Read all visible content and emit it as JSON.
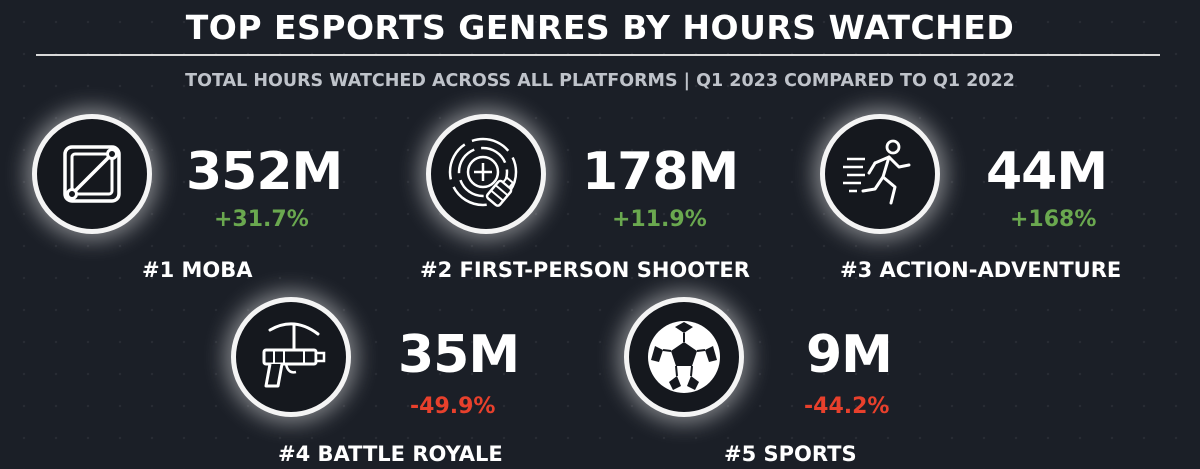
{
  "title": "TOP ESPORTS GENRES BY HOURS WATCHED",
  "subtitle": "TOTAL HOURS WATCHED ACROSS ALL PLATFORMS | Q1 2023 COMPARED TO Q1 2022",
  "colors": {
    "positive": "#6aa84f",
    "negative": "#e8402c",
    "background": "#1b1f27"
  },
  "chart_data": {
    "type": "table",
    "title": "TOP ESPORTS GENRES BY HOURS WATCHED",
    "subtitle": "TOTAL HOURS WATCHED ACROSS ALL PLATFORMS | Q1 2023 COMPARED TO Q1 2022",
    "items": [
      {
        "rank_label": "#1 MOBA",
        "hours": "352M",
        "hours_value": 352,
        "change": "+31.7%",
        "change_value": 31.7,
        "icon": "moba-map-icon"
      },
      {
        "rank_label": "#2 FIRST-PERSON SHOOTER",
        "hours": "178M",
        "hours_value": 178,
        "change": "+11.9%",
        "change_value": 11.9,
        "icon": "crosshair-grenade-icon"
      },
      {
        "rank_label": "#3 ACTION-ADVENTURE",
        "hours": "44M",
        "hours_value": 44,
        "change": "+168%",
        "change_value": 168,
        "icon": "running-person-icon"
      },
      {
        "rank_label": "#4 BATTLE ROYALE",
        "hours": "35M",
        "hours_value": 35,
        "change": "-49.9%",
        "change_value": -49.9,
        "icon": "pickaxe-gun-icon"
      },
      {
        "rank_label": "#5 SPORTS",
        "hours": "9M",
        "hours_value": 9,
        "change": "-44.2%",
        "change_value": -44.2,
        "icon": "soccer-ball-icon"
      }
    ]
  }
}
